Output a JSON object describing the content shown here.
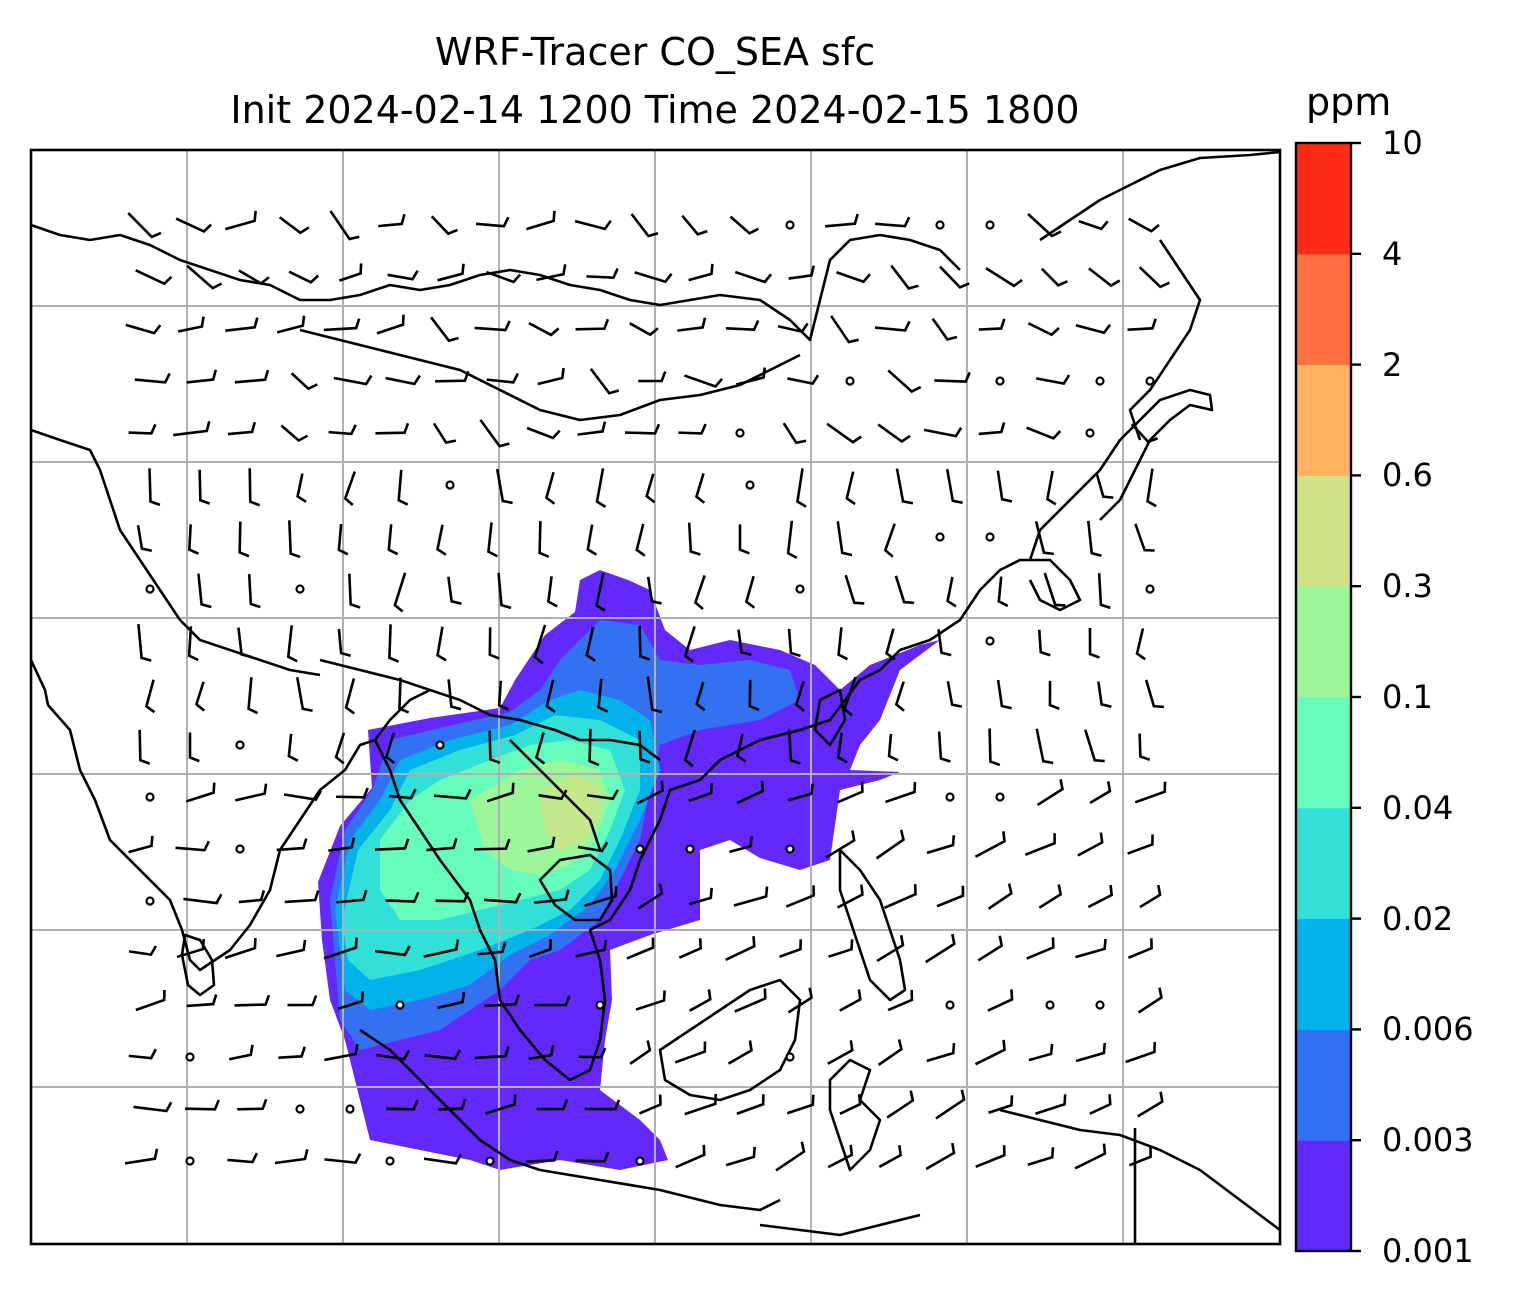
{
  "title_line1": "WRF-Tracer CO_SEA sfc",
  "title_line2": "Init 2024-02-14 1200 Time 2024-02-15 1800",
  "colorbar": {
    "unit": "ppm",
    "levels": [
      "0.001",
      "0.003",
      "0.006",
      "0.02",
      "0.04",
      "0.1",
      "0.3",
      "0.6",
      "2",
      "4",
      "10"
    ],
    "colors": [
      "#6328fb",
      "#3371f3",
      "#02b2eb",
      "#31e0d6",
      "#66fdbc",
      "#9bf79a",
      "#cde385",
      "#ffb25f",
      "#ff7140",
      "#ff2a15"
    ]
  },
  "map": {
    "features": [
      "coastlines",
      "country-borders",
      "lat-lon-gridlines",
      "wind-barbs",
      "tracer-concentration-fill"
    ],
    "tracer": "CO_SEA",
    "level": "sfc"
  }
}
